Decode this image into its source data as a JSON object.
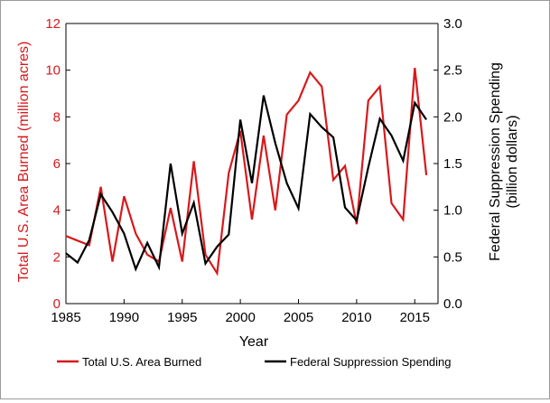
{
  "chart_data": {
    "type": "line",
    "x_axis": {
      "label": "Year",
      "range": [
        1985,
        2017
      ],
      "ticks": [
        1985,
        1990,
        1995,
        2000,
        2005,
        2010,
        2015
      ]
    },
    "y_left": {
      "label": "Total U.S. Area Burned (million acres)",
      "range": [
        0,
        12
      ],
      "ticks": [
        0,
        2,
        4,
        6,
        8,
        10,
        12
      ],
      "color": "#d7191c"
    },
    "y_right": {
      "label_line1": "Federal Suppression Spending",
      "label_line2": "(billion dollars)",
      "range": [
        0,
        3
      ],
      "ticks": [
        "0.0",
        "0.5",
        "1.0",
        "1.5",
        "2.0",
        "2.5",
        "3.0"
      ],
      "color": "#000000"
    },
    "grid": false,
    "legend_position": "bottom",
    "series": [
      {
        "name": "Total U.S. Area Burned",
        "axis": "left",
        "color": "#d7191c",
        "x": [
          1985,
          1986,
          1987,
          1988,
          1989,
          1990,
          1991,
          1992,
          1993,
          1994,
          1995,
          1996,
          1997,
          1998,
          1999,
          2000,
          2001,
          2002,
          2003,
          2004,
          2005,
          2006,
          2007,
          2008,
          2009,
          2010,
          2011,
          2012,
          2013,
          2014,
          2015,
          2016
        ],
        "values": [
          2.9,
          2.7,
          2.5,
          5.0,
          1.8,
          4.6,
          3.0,
          2.1,
          1.8,
          4.1,
          1.8,
          6.1,
          2.1,
          1.3,
          5.6,
          7.4,
          3.6,
          7.2,
          4.0,
          8.1,
          8.7,
          9.9,
          9.3,
          5.3,
          5.9,
          3.4,
          8.7,
          9.3,
          4.3,
          3.6,
          10.1,
          5.5
        ]
      },
      {
        "name": "Federal Suppression Spending",
        "axis": "right",
        "color": "#000000",
        "x": [
          1985,
          1986,
          1987,
          1988,
          1989,
          1990,
          1991,
          1992,
          1993,
          1994,
          1995,
          1996,
          1997,
          1998,
          1999,
          2000,
          2001,
          2002,
          2003,
          2004,
          2005,
          2006,
          2007,
          2008,
          2009,
          2010,
          2011,
          2012,
          2013,
          2014,
          2015,
          2016
        ],
        "values": [
          0.54,
          0.44,
          0.68,
          1.17,
          0.98,
          0.75,
          0.37,
          0.65,
          0.39,
          1.5,
          0.75,
          1.08,
          0.43,
          0.61,
          0.74,
          1.97,
          1.29,
          2.23,
          1.72,
          1.29,
          1.02,
          2.03,
          1.89,
          1.78,
          1.03,
          0.89,
          1.46,
          1.98,
          1.8,
          1.53,
          2.15,
          1.97
        ]
      }
    ]
  }
}
